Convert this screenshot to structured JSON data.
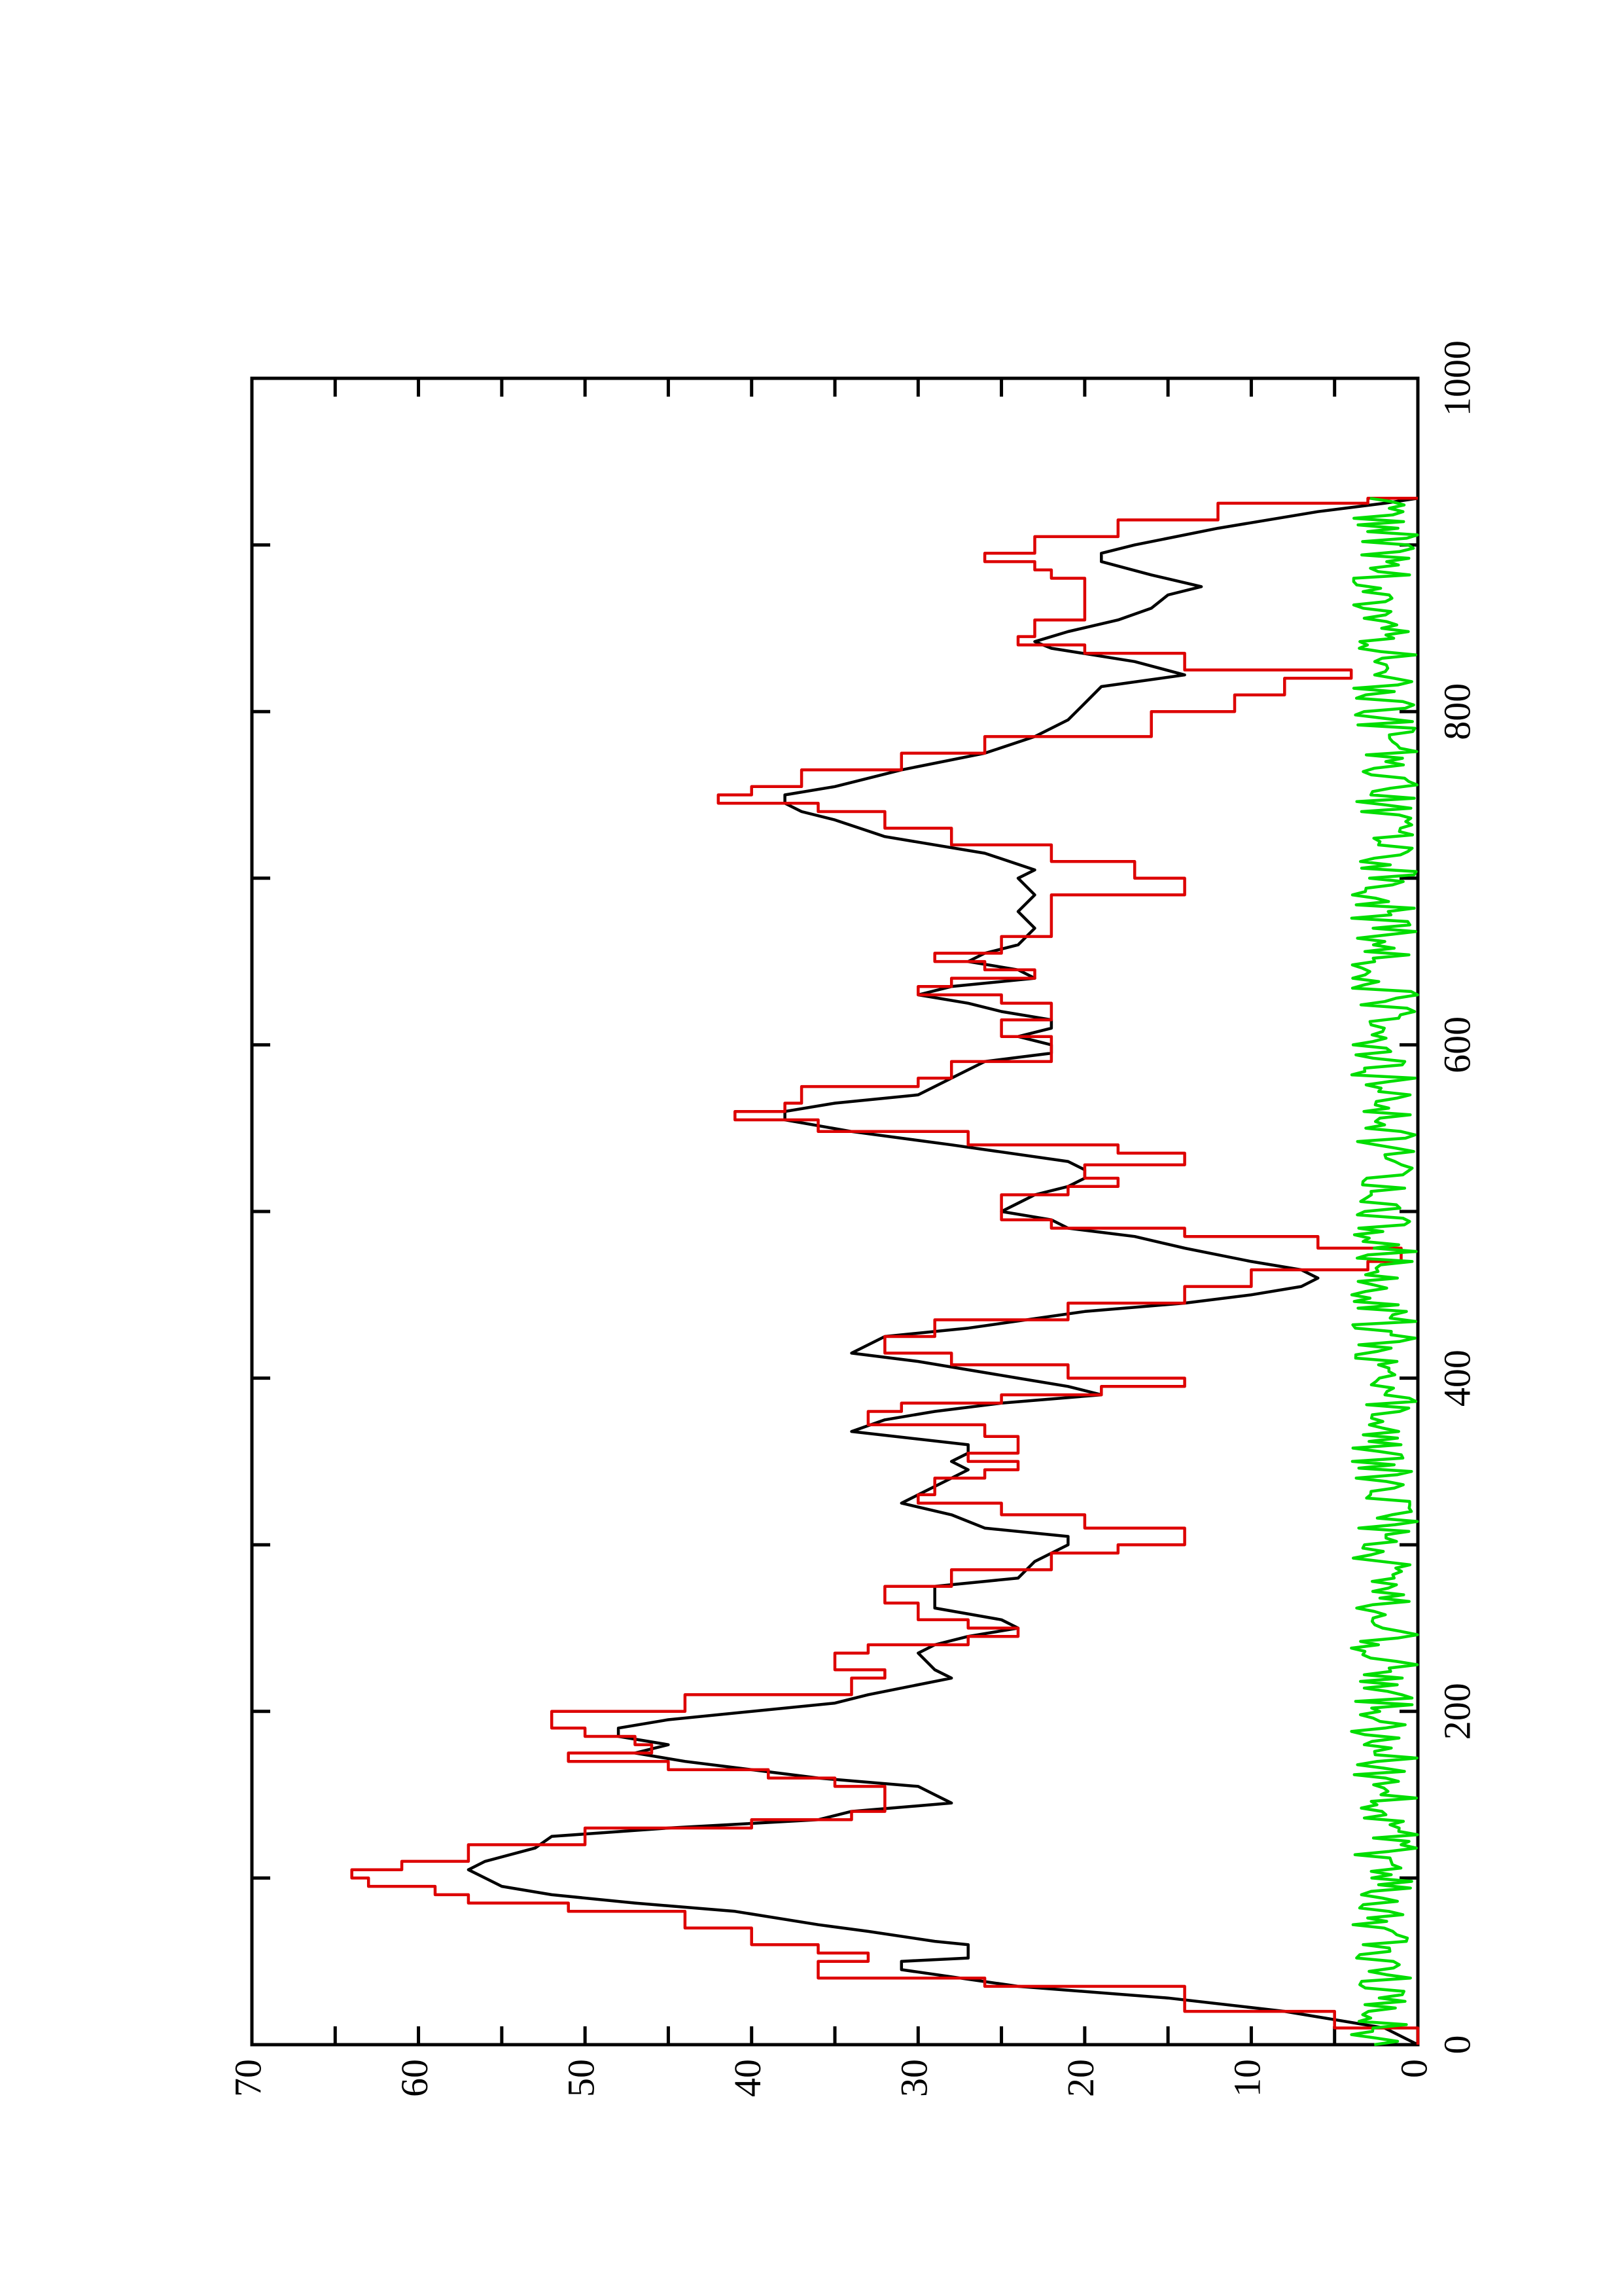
{
  "chart_data": {
    "type": "line",
    "orientation": "rotated-90-clockwise (x axis runs vertically, y axis runs horizontally)",
    "xlim": [
      0,
      1000
    ],
    "ylim": [
      0,
      70
    ],
    "x_ticks": [
      0,
      200,
      400,
      600,
      800,
      1000
    ],
    "x_minor_ticks": [
      100,
      300,
      500,
      700,
      900
    ],
    "y_ticks": [
      0,
      10,
      20,
      30,
      40,
      50,
      60,
      70
    ],
    "x_tick_labels": [
      "0",
      "200",
      "400",
      "600",
      "800",
      "1000"
    ],
    "y_tick_labels": [
      "0",
      "10",
      "20",
      "30",
      "40",
      "50",
      "60",
      "70"
    ],
    "grid": false,
    "colors": {
      "black_series": "#000000",
      "red_series": "#dd0000",
      "green_series": "#00dd00"
    },
    "series": [
      {
        "color": "#000000",
        "style": "line",
        "points": [
          [
            0,
            0
          ],
          [
            10,
            2
          ],
          [
            20,
            8
          ],
          [
            28,
            15
          ],
          [
            35,
            24
          ],
          [
            45,
            31
          ],
          [
            50,
            31
          ],
          [
            52,
            27
          ],
          [
            60,
            27
          ],
          [
            62,
            29
          ],
          [
            68,
            33
          ],
          [
            72,
            36
          ],
          [
            80,
            41
          ],
          [
            85,
            47
          ],
          [
            90,
            52
          ],
          [
            95,
            55
          ],
          [
            100,
            56
          ],
          [
            105,
            57
          ],
          [
            110,
            56
          ],
          [
            118,
            53
          ],
          [
            125,
            52
          ],
          [
            130,
            45
          ],
          [
            135,
            36
          ],
          [
            140,
            34
          ],
          [
            145,
            28
          ],
          [
            150,
            29
          ],
          [
            155,
            30
          ],
          [
            160,
            36
          ],
          [
            165,
            40
          ],
          [
            170,
            44
          ],
          [
            175,
            47
          ],
          [
            180,
            45
          ],
          [
            185,
            48
          ],
          [
            190,
            48
          ],
          [
            195,
            45
          ],
          [
            205,
            35
          ],
          [
            210,
            33
          ],
          [
            220,
            28
          ],
          [
            225,
            29
          ],
          [
            235,
            30
          ],
          [
            240,
            29
          ],
          [
            245,
            27
          ],
          [
            250,
            24
          ],
          [
            255,
            25
          ],
          [
            262,
            29
          ],
          [
            268,
            29
          ],
          [
            275,
            29
          ],
          [
            280,
            24
          ],
          [
            290,
            23
          ],
          [
            300,
            21
          ],
          [
            305,
            21
          ],
          [
            310,
            26
          ],
          [
            318,
            28
          ],
          [
            325,
            31
          ],
          [
            330,
            30
          ],
          [
            340,
            28
          ],
          [
            345,
            27
          ],
          [
            350,
            28
          ],
          [
            355,
            27
          ],
          [
            360,
            27
          ],
          [
            368,
            34
          ],
          [
            375,
            32
          ],
          [
            380,
            29
          ],
          [
            385,
            25
          ],
          [
            390,
            19
          ],
          [
            395,
            21
          ],
          [
            400,
            24
          ],
          [
            410,
            30
          ],
          [
            415,
            34
          ],
          [
            425,
            32
          ],
          [
            430,
            27
          ],
          [
            440,
            20
          ],
          [
            445,
            14
          ],
          [
            450,
            10
          ],
          [
            455,
            7
          ],
          [
            460,
            6
          ],
          [
            465,
            7
          ],
          [
            470,
            10
          ],
          [
            478,
            14
          ],
          [
            485,
            17
          ],
          [
            490,
            21
          ],
          [
            495,
            22
          ],
          [
            500,
            25
          ],
          [
            505,
            24
          ],
          [
            510,
            23
          ],
          [
            515,
            21
          ],
          [
            520,
            20
          ],
          [
            525,
            20
          ],
          [
            530,
            21
          ],
          [
            540,
            28
          ],
          [
            548,
            34
          ],
          [
            555,
            38
          ],
          [
            560,
            38
          ],
          [
            565,
            35
          ],
          [
            570,
            30
          ],
          [
            580,
            28
          ],
          [
            590,
            26
          ],
          [
            595,
            22
          ],
          [
            600,
            22
          ],
          [
            605,
            24
          ],
          [
            610,
            22
          ],
          [
            615,
            22
          ],
          [
            620,
            25
          ],
          [
            625,
            27
          ],
          [
            630,
            30
          ],
          [
            635,
            28
          ],
          [
            640,
            23
          ],
          [
            645,
            24
          ],
          [
            650,
            27
          ],
          [
            655,
            26
          ],
          [
            660,
            24
          ],
          [
            670,
            23
          ],
          [
            680,
            24
          ],
          [
            690,
            23
          ],
          [
            700,
            24
          ],
          [
            705,
            23
          ],
          [
            715,
            26
          ],
          [
            725,
            32
          ],
          [
            735,
            35
          ],
          [
            740,
            37
          ],
          [
            745,
            38
          ],
          [
            750,
            38
          ],
          [
            755,
            35
          ],
          [
            765,
            31
          ],
          [
            775,
            26
          ],
          [
            785,
            23
          ],
          [
            795,
            21
          ],
          [
            805,
            20
          ],
          [
            815,
            19
          ],
          [
            822,
            14
          ],
          [
            830,
            17
          ],
          [
            838,
            22
          ],
          [
            842,
            23
          ],
          [
            848,
            21
          ],
          [
            855,
            18
          ],
          [
            862,
            16
          ],
          [
            870,
            15
          ],
          [
            875,
            13
          ],
          [
            882,
            16
          ],
          [
            890,
            19
          ],
          [
            895,
            19
          ],
          [
            900,
            17
          ],
          [
            910,
            12
          ],
          [
            920,
            6
          ],
          [
            925,
            2
          ],
          [
            928,
            0
          ]
        ]
      },
      {
        "color": "#dd0000",
        "style": "step-line",
        "points": [
          [
            0,
            0
          ],
          [
            10,
            5
          ],
          [
            20,
            14
          ],
          [
            35,
            26
          ],
          [
            40,
            36
          ],
          [
            50,
            33
          ],
          [
            55,
            36
          ],
          [
            60,
            40
          ],
          [
            70,
            44
          ],
          [
            80,
            51
          ],
          [
            85,
            57
          ],
          [
            90,
            59
          ],
          [
            95,
            63
          ],
          [
            100,
            64
          ],
          [
            105,
            61
          ],
          [
            110,
            57
          ],
          [
            120,
            50
          ],
          [
            130,
            40
          ],
          [
            135,
            34
          ],
          [
            140,
            32
          ],
          [
            150,
            32
          ],
          [
            155,
            35
          ],
          [
            160,
            39
          ],
          [
            165,
            45
          ],
          [
            170,
            51
          ],
          [
            175,
            46
          ],
          [
            180,
            47
          ],
          [
            185,
            50
          ],
          [
            190,
            52
          ],
          [
            200,
            44
          ],
          [
            210,
            34
          ],
          [
            220,
            32
          ],
          [
            225,
            35
          ],
          [
            235,
            33
          ],
          [
            240,
            27
          ],
          [
            245,
            24
          ],
          [
            250,
            27
          ],
          [
            255,
            30
          ],
          [
            265,
            32
          ],
          [
            275,
            28
          ],
          [
            285,
            22
          ],
          [
            295,
            18
          ],
          [
            300,
            14
          ],
          [
            305,
            14
          ],
          [
            310,
            20
          ],
          [
            318,
            25
          ],
          [
            325,
            30
          ],
          [
            330,
            29
          ],
          [
            340,
            26
          ],
          [
            345,
            24
          ],
          [
            350,
            27
          ],
          [
            355,
            24
          ],
          [
            365,
            26
          ],
          [
            372,
            33
          ],
          [
            380,
            31
          ],
          [
            385,
            25
          ],
          [
            390,
            19
          ],
          [
            395,
            14
          ],
          [
            400,
            21
          ],
          [
            408,
            28
          ],
          [
            415,
            32
          ],
          [
            425,
            29
          ],
          [
            435,
            21
          ],
          [
            445,
            14
          ],
          [
            455,
            10
          ],
          [
            465,
            3
          ],
          [
            470,
            1
          ],
          [
            478,
            6
          ],
          [
            485,
            14
          ],
          [
            490,
            22
          ],
          [
            495,
            25
          ],
          [
            500,
            25
          ],
          [
            510,
            21
          ],
          [
            515,
            18
          ],
          [
            520,
            20
          ],
          [
            528,
            14
          ],
          [
            535,
            18
          ],
          [
            540,
            27
          ],
          [
            548,
            36
          ],
          [
            555,
            41
          ],
          [
            560,
            38
          ],
          [
            565,
            37
          ],
          [
            575,
            30
          ],
          [
            580,
            28
          ],
          [
            590,
            22
          ],
          [
            595,
            22
          ],
          [
            600,
            22
          ],
          [
            605,
            25
          ],
          [
            610,
            25
          ],
          [
            615,
            22
          ],
          [
            620,
            22
          ],
          [
            625,
            25
          ],
          [
            630,
            30
          ],
          [
            635,
            28
          ],
          [
            640,
            23
          ],
          [
            645,
            26
          ],
          [
            650,
            29
          ],
          [
            655,
            25
          ],
          [
            665,
            22
          ],
          [
            680,
            22
          ],
          [
            690,
            14
          ],
          [
            700,
            17
          ],
          [
            710,
            22
          ],
          [
            720,
            28
          ],
          [
            730,
            32
          ],
          [
            740,
            36
          ],
          [
            745,
            42
          ],
          [
            750,
            40
          ],
          [
            755,
            37
          ],
          [
            765,
            31
          ],
          [
            775,
            26
          ],
          [
            785,
            16
          ],
          [
            800,
            11
          ],
          [
            810,
            8
          ],
          [
            820,
            4
          ],
          [
            825,
            14
          ],
          [
            835,
            20
          ],
          [
            840,
            24
          ],
          [
            845,
            23
          ],
          [
            855,
            20
          ],
          [
            870,
            20
          ],
          [
            880,
            22
          ],
          [
            885,
            23
          ],
          [
            890,
            26
          ],
          [
            895,
            23
          ],
          [
            905,
            18
          ],
          [
            915,
            12
          ],
          [
            925,
            3
          ],
          [
            928,
            0
          ]
        ]
      },
      {
        "color": "#00dd00",
        "style": "noisy-line",
        "x_range": [
          0,
          928
        ],
        "y_range": [
          0,
          4
        ]
      }
    ]
  }
}
